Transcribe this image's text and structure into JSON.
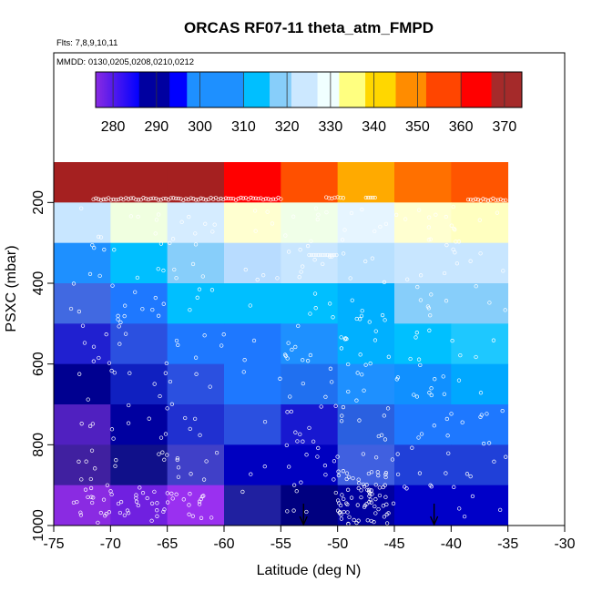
{
  "chart_data": {
    "type": "heatmap",
    "title": "ORCAS RF07-11 theta_atm_FMPD",
    "flights_label": "Flts: 7,8,9,10,11",
    "dates_label": "MMDD: 0130,0205,0208,0210,0212",
    "xlabel": "Latitude (deg N)",
    "ylabel": "PSXC (mbar)",
    "xlim": [
      -75,
      -30
    ],
    "ylim": [
      1000,
      100
    ],
    "x_ticks": [
      -75,
      -70,
      -65,
      -60,
      -55,
      -50,
      -45,
      -40,
      -35,
      -30
    ],
    "y_ticks": [
      200,
      400,
      600,
      800,
      1000
    ],
    "colorbar": {
      "range": [
        276,
        374
      ],
      "ticks": [
        280,
        290,
        300,
        310,
        320,
        330,
        340,
        350,
        360,
        370
      ],
      "bands": [
        {
          "from": 276,
          "to": 286,
          "color": "#8a2be2",
          "fade_to": "#0000ff"
        },
        {
          "from": 286,
          "to": 293,
          "color": "#0000a0"
        },
        {
          "from": 293,
          "to": 297,
          "color": "#0000ff"
        },
        {
          "from": 297,
          "to": 310,
          "color": "#1e90ff"
        },
        {
          "from": 310,
          "to": 316,
          "color": "#00bfff"
        },
        {
          "from": 316,
          "to": 321,
          "color": "#87cefa"
        },
        {
          "from": 321,
          "to": 327,
          "color": "#cce8ff"
        },
        {
          "from": 327,
          "to": 332,
          "color": "#f0ffff"
        },
        {
          "from": 332,
          "to": 338,
          "color": "#ffff80"
        },
        {
          "from": 338,
          "to": 345,
          "color": "#ffd700"
        },
        {
          "from": 345,
          "to": 352,
          "color": "#ff8c00"
        },
        {
          "from": 352,
          "to": 360,
          "color": "#ff4500"
        },
        {
          "from": 360,
          "to": 367,
          "color": "#ff0000"
        },
        {
          "from": 367,
          "to": 374,
          "color": "#a52a2a"
        }
      ]
    },
    "lat_bins": [
      [
        -75,
        -70
      ],
      [
        -70,
        -65
      ],
      [
        -65,
        -60
      ],
      [
        -60,
        -55
      ],
      [
        -55,
        -50
      ],
      [
        -50,
        -45
      ],
      [
        -45,
        -40
      ],
      [
        -40,
        -35
      ]
    ],
    "pressure_bins": [
      [
        100,
        200
      ],
      [
        200,
        300
      ],
      [
        300,
        400
      ],
      [
        400,
        500
      ],
      [
        500,
        600
      ],
      [
        600,
        700
      ],
      [
        700,
        800
      ],
      [
        800,
        900
      ],
      [
        900,
        1000
      ]
    ],
    "cell_colors": [
      [
        "#a52020",
        "#a52020",
        "#a52020",
        "#ff0000",
        "#ff5000",
        "#ffaa00",
        "#ff7000",
        "#ff5500"
      ],
      [
        "#c8e6ff",
        "#f0ffe0",
        "#d5ecff",
        "#ffffd0",
        "#f0ffe8",
        "#e6f5ff",
        "#ffffd0",
        "#ffffc0"
      ],
      [
        "#1e90ff",
        "#00bfff",
        "#87cefa",
        "#b8dcff",
        "#c8e6ff",
        "#b8e0ff",
        "#c8e6ff",
        "#c8e6ff"
      ],
      [
        "#4169e1",
        "#1e78ff",
        "#00bfff",
        "#00bfff",
        "#00bfff",
        "#00b0ff",
        "#87cefa",
        "#87cefa"
      ],
      [
        "#2020d0",
        "#2b50e0",
        "#1e78ff",
        "#1e78ff",
        "#1e90ff",
        "#00b0ff",
        "#00c0ff",
        "#1ec8ff"
      ],
      [
        "#000090",
        "#1020c0",
        "#2b50e0",
        "#1e78ff",
        "#2070f0",
        "#1e90ff",
        "#1090ff",
        "#00a8ff"
      ],
      [
        "#5020c0",
        "#0000a0",
        "#2030d0",
        "#2b50e0",
        "#1818d0",
        "#2a60e0",
        "#1e78ff",
        "#1e78ff"
      ],
      [
        "#4020a0",
        "#10108a",
        "#4040c8",
        "#0000c0",
        "#0000c0",
        "#4060e0",
        "#2040d8",
        "#2040d8"
      ],
      [
        "#8a2be2",
        "#7020e0",
        "#9a30f0",
        "#2020a0",
        "#000080",
        "#0000a0",
        "#0000c8",
        "#0000c8"
      ]
    ],
    "observations": {
      "marker": "open-circle",
      "notes": "individual aircraft samples overlaid as small open circles"
    },
    "arrows_at_latitude": [
      -53,
      -41.5
    ]
  }
}
